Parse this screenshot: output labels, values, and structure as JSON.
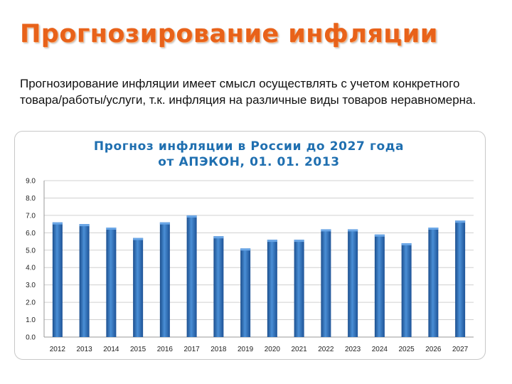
{
  "slide": {
    "title": "Прогнозирование инфляции",
    "intro": "Прогнозирование инфляции имеет смысл осуществлять с учетом конкретного товара/работы/услуги, т.к. инфляция на различные виды товаров неравномерна."
  },
  "colors": {
    "title": "#e8621a",
    "chart_title": "#1f6fb0",
    "bar": "#2e74c0",
    "grid": "#d0d0d0"
  },
  "chart_data": {
    "type": "bar",
    "title_lines": [
      "Прогноз инфляции в России до 2027 года",
      "от АПЭКОН, 01. 01. 2013"
    ],
    "categories": [
      "2012",
      "2013",
      "2014",
      "2015",
      "2016",
      "2017",
      "2018",
      "2019",
      "2020",
      "2021",
      "2022",
      "2023",
      "2024",
      "2025",
      "2026",
      "2027"
    ],
    "values": [
      6.6,
      6.5,
      6.3,
      5.7,
      6.6,
      7.0,
      5.8,
      5.1,
      5.6,
      5.6,
      6.2,
      6.2,
      5.9,
      5.4,
      6.3,
      6.7
    ],
    "yticks": [
      "0.0",
      "1.0",
      "2.0",
      "3.0",
      "4.0",
      "5.0",
      "6.0",
      "7.0",
      "8.0",
      "9.0"
    ],
    "ylim": [
      0,
      9
    ],
    "grid": true,
    "legend": "none"
  }
}
